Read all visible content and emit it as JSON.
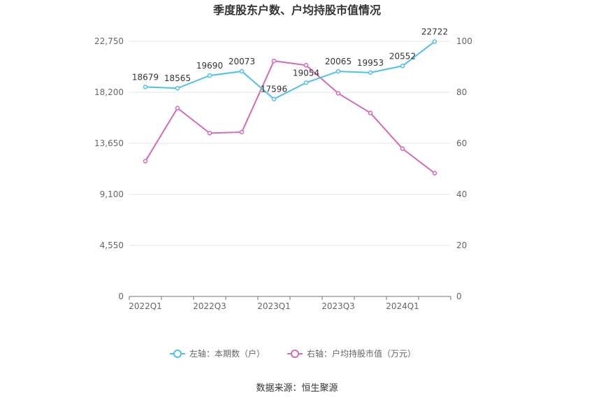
{
  "chart_data": {
    "type": "line",
    "title": "季度股东户数、户均持股市值情况",
    "x": [
      "2022Q1",
      "2022Q2",
      "2022Q3",
      "2022Q4",
      "2023Q1",
      "2023Q2",
      "2023Q3",
      "2023Q4",
      "2024Q1",
      "2024Q2"
    ],
    "x_tick_labels": [
      "2022Q1",
      "",
      "2022Q3",
      "",
      "2023Q1",
      "",
      "2023Q3",
      "",
      "2024Q1",
      ""
    ],
    "left_axis": {
      "ticks": [
        "0",
        "4,550",
        "9,100",
        "13,650",
        "18,200",
        "22,750"
      ],
      "ylim": [
        0,
        22750
      ]
    },
    "right_axis": {
      "ticks": [
        "0",
        "20",
        "40",
        "60",
        "80",
        "100"
      ],
      "ylim": [
        0,
        100
      ]
    },
    "series": [
      {
        "name": "左轴：本期数（户）",
        "axis": "left",
        "color": "#4FC1E9",
        "values": [
          18679,
          18565,
          19690,
          20073,
          17596,
          19054,
          20065,
          19953,
          20552,
          22722
        ],
        "labels": [
          "18679",
          "18565",
          "19690",
          "20073",
          "17596",
          "19054",
          "20065",
          "19953",
          "20552",
          "22722"
        ]
      },
      {
        "name": "右轴：户均持股市值（万元）",
        "axis": "right",
        "color": "#D36BB3",
        "values": [
          53.0,
          73.8,
          64.0,
          64.4,
          92.3,
          90.6,
          79.6,
          71.9,
          57.9,
          48.3
        ]
      }
    ],
    "legend_position": "bottom",
    "grid": true
  },
  "source": "数据来源：恒生聚源"
}
